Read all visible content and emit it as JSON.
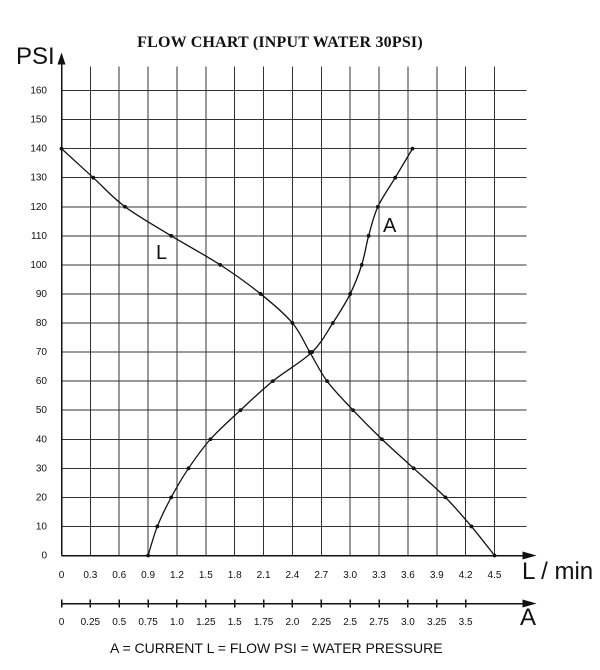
{
  "chart_data": {
    "type": "line",
    "title": "FLOW CHART (INPUT WATER 30PSI)",
    "y_axis": {
      "label": "PSI",
      "ticks": [
        0,
        10,
        20,
        30,
        40,
        50,
        60,
        70,
        80,
        90,
        100,
        110,
        120,
        130,
        140,
        150,
        160
      ],
      "ylim": [
        0,
        160
      ]
    },
    "x_axis_flow": {
      "label": "L / min",
      "ticks": [
        "0",
        "0.3",
        "0.6",
        "0.9",
        "1.2",
        "1.5",
        "1.8",
        "2.1",
        "2.4",
        "2.7",
        "3.0",
        "3.3",
        "3.6",
        "3.9",
        "4.2",
        "4.5"
      ],
      "xlim": [
        0,
        4.5
      ]
    },
    "x_axis_current": {
      "label": "A",
      "ticks": [
        "0",
        "0.25",
        "0.5",
        "0.75",
        "1.0",
        "1.25",
        "1.5",
        "1.75",
        "2.0",
        "2.25",
        "2.5",
        "2.75",
        "3.0",
        "3.25",
        "3.5"
      ],
      "xlim": [
        0,
        3.75
      ]
    },
    "series": [
      {
        "name": "L",
        "label": "L",
        "axis": "flow",
        "points": [
          {
            "x": 0.0,
            "y": 140
          },
          {
            "x": 0.33,
            "y": 130
          },
          {
            "x": 0.66,
            "y": 120
          },
          {
            "x": 1.14,
            "y": 110
          },
          {
            "x": 1.65,
            "y": 100
          },
          {
            "x": 2.07,
            "y": 90
          },
          {
            "x": 2.4,
            "y": 80
          },
          {
            "x": 2.58,
            "y": 70
          },
          {
            "x": 2.76,
            "y": 60
          },
          {
            "x": 3.03,
            "y": 50
          },
          {
            "x": 3.33,
            "y": 40
          },
          {
            "x": 3.66,
            "y": 30
          },
          {
            "x": 3.99,
            "y": 20
          },
          {
            "x": 4.26,
            "y": 10
          },
          {
            "x": 4.5,
            "y": 0
          }
        ]
      },
      {
        "name": "A",
        "label": "A",
        "axis": "current",
        "points": [
          {
            "x": 0.75,
            "y": 0
          },
          {
            "x": 0.83,
            "y": 10
          },
          {
            "x": 0.95,
            "y": 20
          },
          {
            "x": 1.1,
            "y": 30
          },
          {
            "x": 1.29,
            "y": 40
          },
          {
            "x": 1.55,
            "y": 50
          },
          {
            "x": 1.83,
            "y": 60
          },
          {
            "x": 2.17,
            "y": 70
          },
          {
            "x": 2.35,
            "y": 80
          },
          {
            "x": 2.5,
            "y": 90
          },
          {
            "x": 2.6,
            "y": 100
          },
          {
            "x": 2.66,
            "y": 110
          },
          {
            "x": 2.74,
            "y": 120
          },
          {
            "x": 2.89,
            "y": 130
          },
          {
            "x": 3.04,
            "y": 140
          }
        ]
      }
    ],
    "grid": true,
    "footnote": "A = CURRENT   L = FLOW   PSI = WATER PRESSURE"
  }
}
